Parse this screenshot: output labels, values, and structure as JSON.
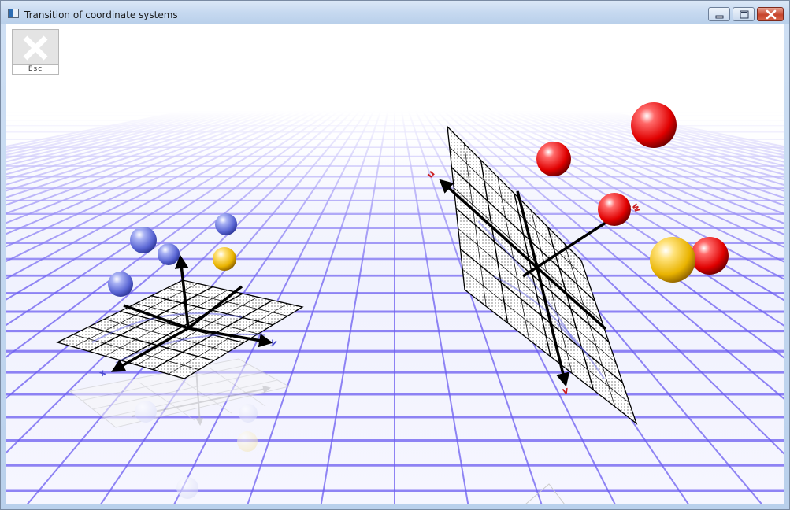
{
  "window": {
    "title": "Transition of coordinate systems",
    "buttons": [
      "minimize",
      "maximize",
      "close"
    ]
  },
  "toolbar": {
    "esc_label": "Esc",
    "esc_icon": "close-x-icon"
  },
  "scene": {
    "left_axes": {
      "x_label": "x",
      "y_label": "y"
    },
    "right_axes": {
      "u_label": "u",
      "v_label": "v",
      "w_label": "w"
    },
    "colors": {
      "floor_grid": "#6b5cf0",
      "blue_sphere": "#6b78e0",
      "gold_sphere": "#e9b300",
      "red_sphere": "#e00000",
      "axis": "#000000",
      "axis_label": "#cc1f1f"
    }
  }
}
